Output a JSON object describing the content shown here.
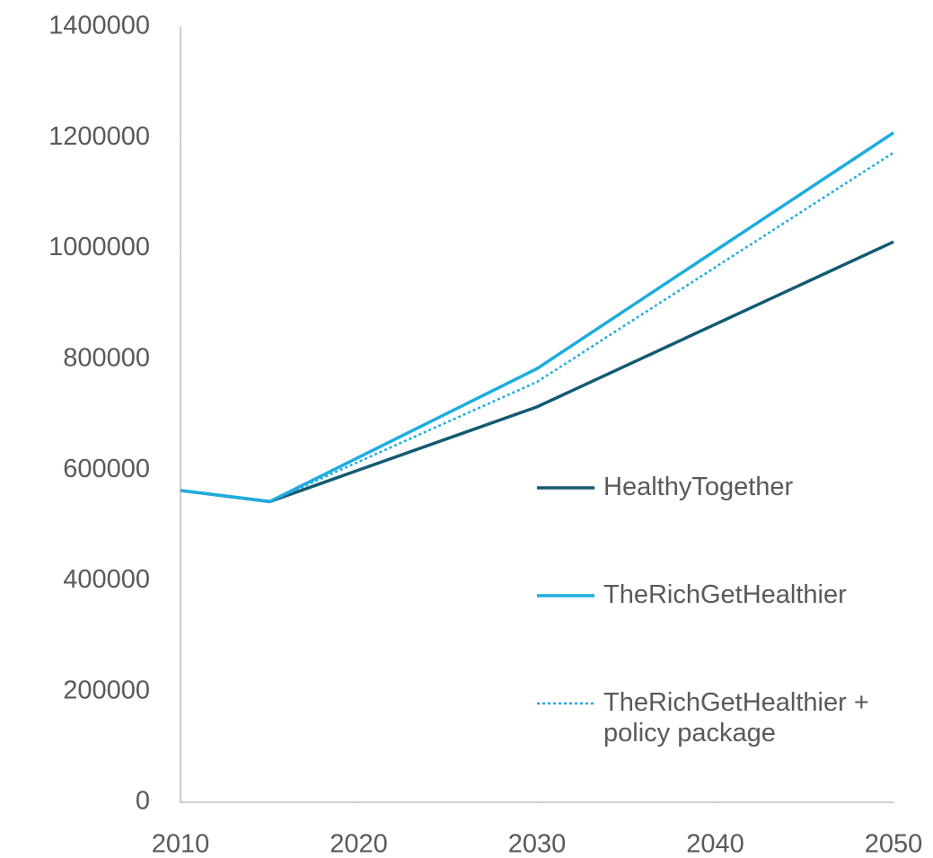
{
  "chart_data": {
    "type": "line",
    "x": [
      2010,
      2015,
      2030,
      2050
    ],
    "series": [
      {
        "name": "HealthyTogether",
        "color": "#135a72",
        "style": "solid",
        "values": [
          563000,
          543000,
          714000,
          1012000
        ]
      },
      {
        "name": "TheRichGetHealthier",
        "color": "#1eacde",
        "style": "solid",
        "values": [
          563000,
          543000,
          783000,
          1209000
        ]
      },
      {
        "name": "TheRichGetHealthier + policy package",
        "color": "#1eacde",
        "style": "dotted",
        "values": [
          563000,
          543000,
          759000,
          1173000
        ]
      }
    ],
    "xlim": [
      2010,
      2050
    ],
    "xticks": [
      2010,
      2020,
      2030,
      2040,
      2050
    ],
    "ylim": [
      0,
      1400000
    ],
    "yticks": [
      0,
      200000,
      400000,
      600000,
      800000,
      1000000,
      1200000,
      1400000
    ],
    "grid": false,
    "legend": "right"
  }
}
